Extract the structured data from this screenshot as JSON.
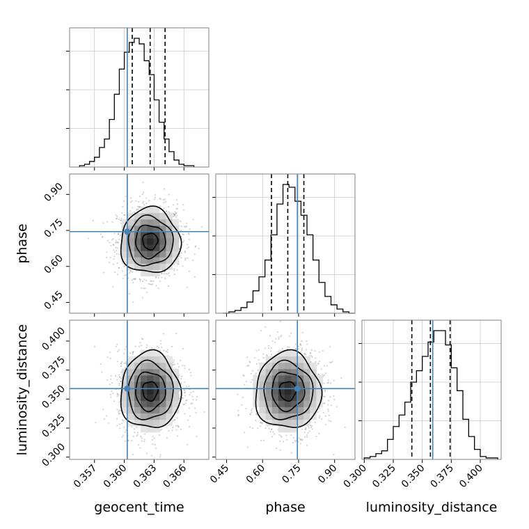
{
  "chart_data": {
    "type": "corner",
    "parameters": [
      {
        "name": "geocent_time",
        "label": "geocent_time",
        "range": [
          0.3545,
          0.3685
        ],
        "ticks": [
          "0.357",
          "0.360",
          "0.363",
          "0.366"
        ],
        "tick_values": [
          0.357,
          0.36,
          0.363,
          0.366
        ],
        "truth": 0.3603,
        "quantiles": [
          0.3608,
          0.3626,
          0.3641
        ]
      },
      {
        "name": "phase",
        "label": "phase",
        "range": [
          0.405,
          0.985
        ],
        "ticks": [
          "0.45",
          "0.60",
          "0.75",
          "0.90"
        ],
        "tick_values": [
          0.45,
          0.6,
          0.75,
          0.9
        ],
        "truth": 0.745,
        "quantiles": [
          0.637,
          0.705,
          0.772
        ]
      },
      {
        "name": "luminosity_distance",
        "label": "luminosity_distance",
        "range": [
          0.298,
          0.418
        ],
        "ticks": [
          "0.300",
          "0.325",
          "0.350",
          "0.375",
          "0.400"
        ],
        "tick_values": [
          0.3,
          0.325,
          0.35,
          0.375,
          0.4
        ],
        "truth": 0.359,
        "quantiles": [
          0.341,
          0.357,
          0.374
        ]
      }
    ],
    "histograms": {
      "geocent_time": {
        "bin_start": 0.3555,
        "bin_width": 0.0005,
        "counts": [
          1,
          2,
          4,
          7,
          14,
          20,
          34,
          52,
          70,
          82,
          89,
          92,
          88,
          76,
          66,
          48,
          32,
          20,
          11,
          5,
          2,
          1,
          1
        ]
      },
      "phase": {
        "bin_start": 0.435,
        "bin_width": 0.025,
        "counts": [
          0,
          1,
          2,
          4,
          8,
          16,
          26,
          38,
          56,
          78,
          92,
          90,
          80,
          70,
          56,
          38,
          22,
          12,
          6,
          3,
          1,
          0
        ]
      },
      "luminosity_distance": {
        "bin_start": 0.3,
        "bin_width": 0.005,
        "counts": [
          1,
          2,
          4,
          6,
          14,
          23,
          31,
          40,
          54,
          62,
          72,
          82,
          90,
          90,
          80,
          64,
          48,
          28,
          16,
          7,
          2,
          1,
          1
        ]
      }
    },
    "joint": [
      {
        "x": "geocent_time",
        "y": "phase",
        "center": [
          0.3626,
          0.705
        ],
        "sigma": [
          0.0015,
          0.068
        ],
        "rho": 0.0
      },
      {
        "x": "geocent_time",
        "y": "luminosity_distance",
        "center": [
          0.3626,
          0.357
        ],
        "sigma": [
          0.0015,
          0.0165
        ],
        "rho": 0.0
      },
      {
        "x": "phase",
        "y": "luminosity_distance",
        "center": [
          0.705,
          0.357
        ],
        "sigma": [
          0.068,
          0.0165
        ],
        "rho": 0.0
      }
    ],
    "contour_levels_sigma": [
      0.5,
      1.0,
      1.5,
      2.0
    ],
    "truth_color": "#4682b4",
    "grid": true,
    "legend": "none"
  }
}
